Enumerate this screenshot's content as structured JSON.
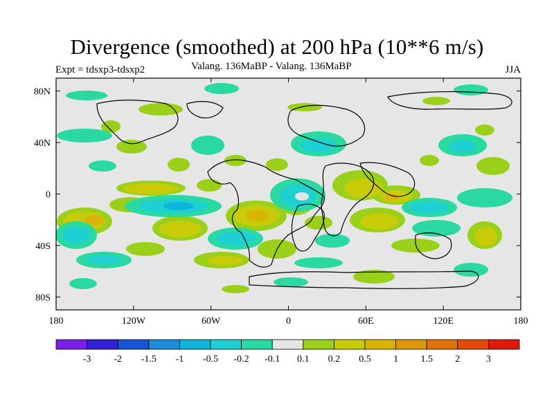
{
  "title": "Divergence (smoothed) at 200 hPa (10**6 m/s)",
  "subtitle_left": "Expt = tdsxp3-tdsxp2",
  "subtitle_center": "Valang. 136MaBP - Valang. 136MaBP",
  "subtitle_right": "JJA",
  "x_ticks": [
    {
      "label": "180",
      "lon": -180
    },
    {
      "label": "120W",
      "lon": -120
    },
    {
      "label": "60W",
      "lon": -60
    },
    {
      "label": "0",
      "lon": 0
    },
    {
      "label": "60E",
      "lon": 60
    },
    {
      "label": "120E",
      "lon": 120
    },
    {
      "label": "180",
      "lon": 180
    }
  ],
  "y_ticks": [
    {
      "label": "80N",
      "lat": 80
    },
    {
      "label": "40N",
      "lat": 40
    },
    {
      "label": "0",
      "lat": 0
    },
    {
      "label": "40S",
      "lat": -40
    },
    {
      "label": "80S",
      "lat": -80
    }
  ],
  "colorbar": {
    "colors": [
      "#7a1fe6",
      "#3420d8",
      "#1653d6",
      "#1c8bd9",
      "#10b5dc",
      "#1ed0d2",
      "#2ad8a1",
      "#e6e6e6",
      "#9ad01a",
      "#c8cc08",
      "#d8b407",
      "#dc9607",
      "#e07208",
      "#e24a08",
      "#e01a08"
    ],
    "labels": [
      "-3",
      "-2",
      "-1.5",
      "-1",
      "-0.5",
      "-0.2",
      "-0.1",
      "0.1",
      "0.2",
      "0.5",
      "1",
      "1.5",
      "2",
      "3"
    ]
  },
  "colors": {
    "background": "#e6e6e6",
    "neg_light": "#2ad8a1",
    "neg_mid": "#1ed0d2",
    "neg_strong": "#10b5dc",
    "pos_light": "#9ad01a",
    "pos_mid": "#c8cc08",
    "pos_strong": "#d8b407"
  }
}
